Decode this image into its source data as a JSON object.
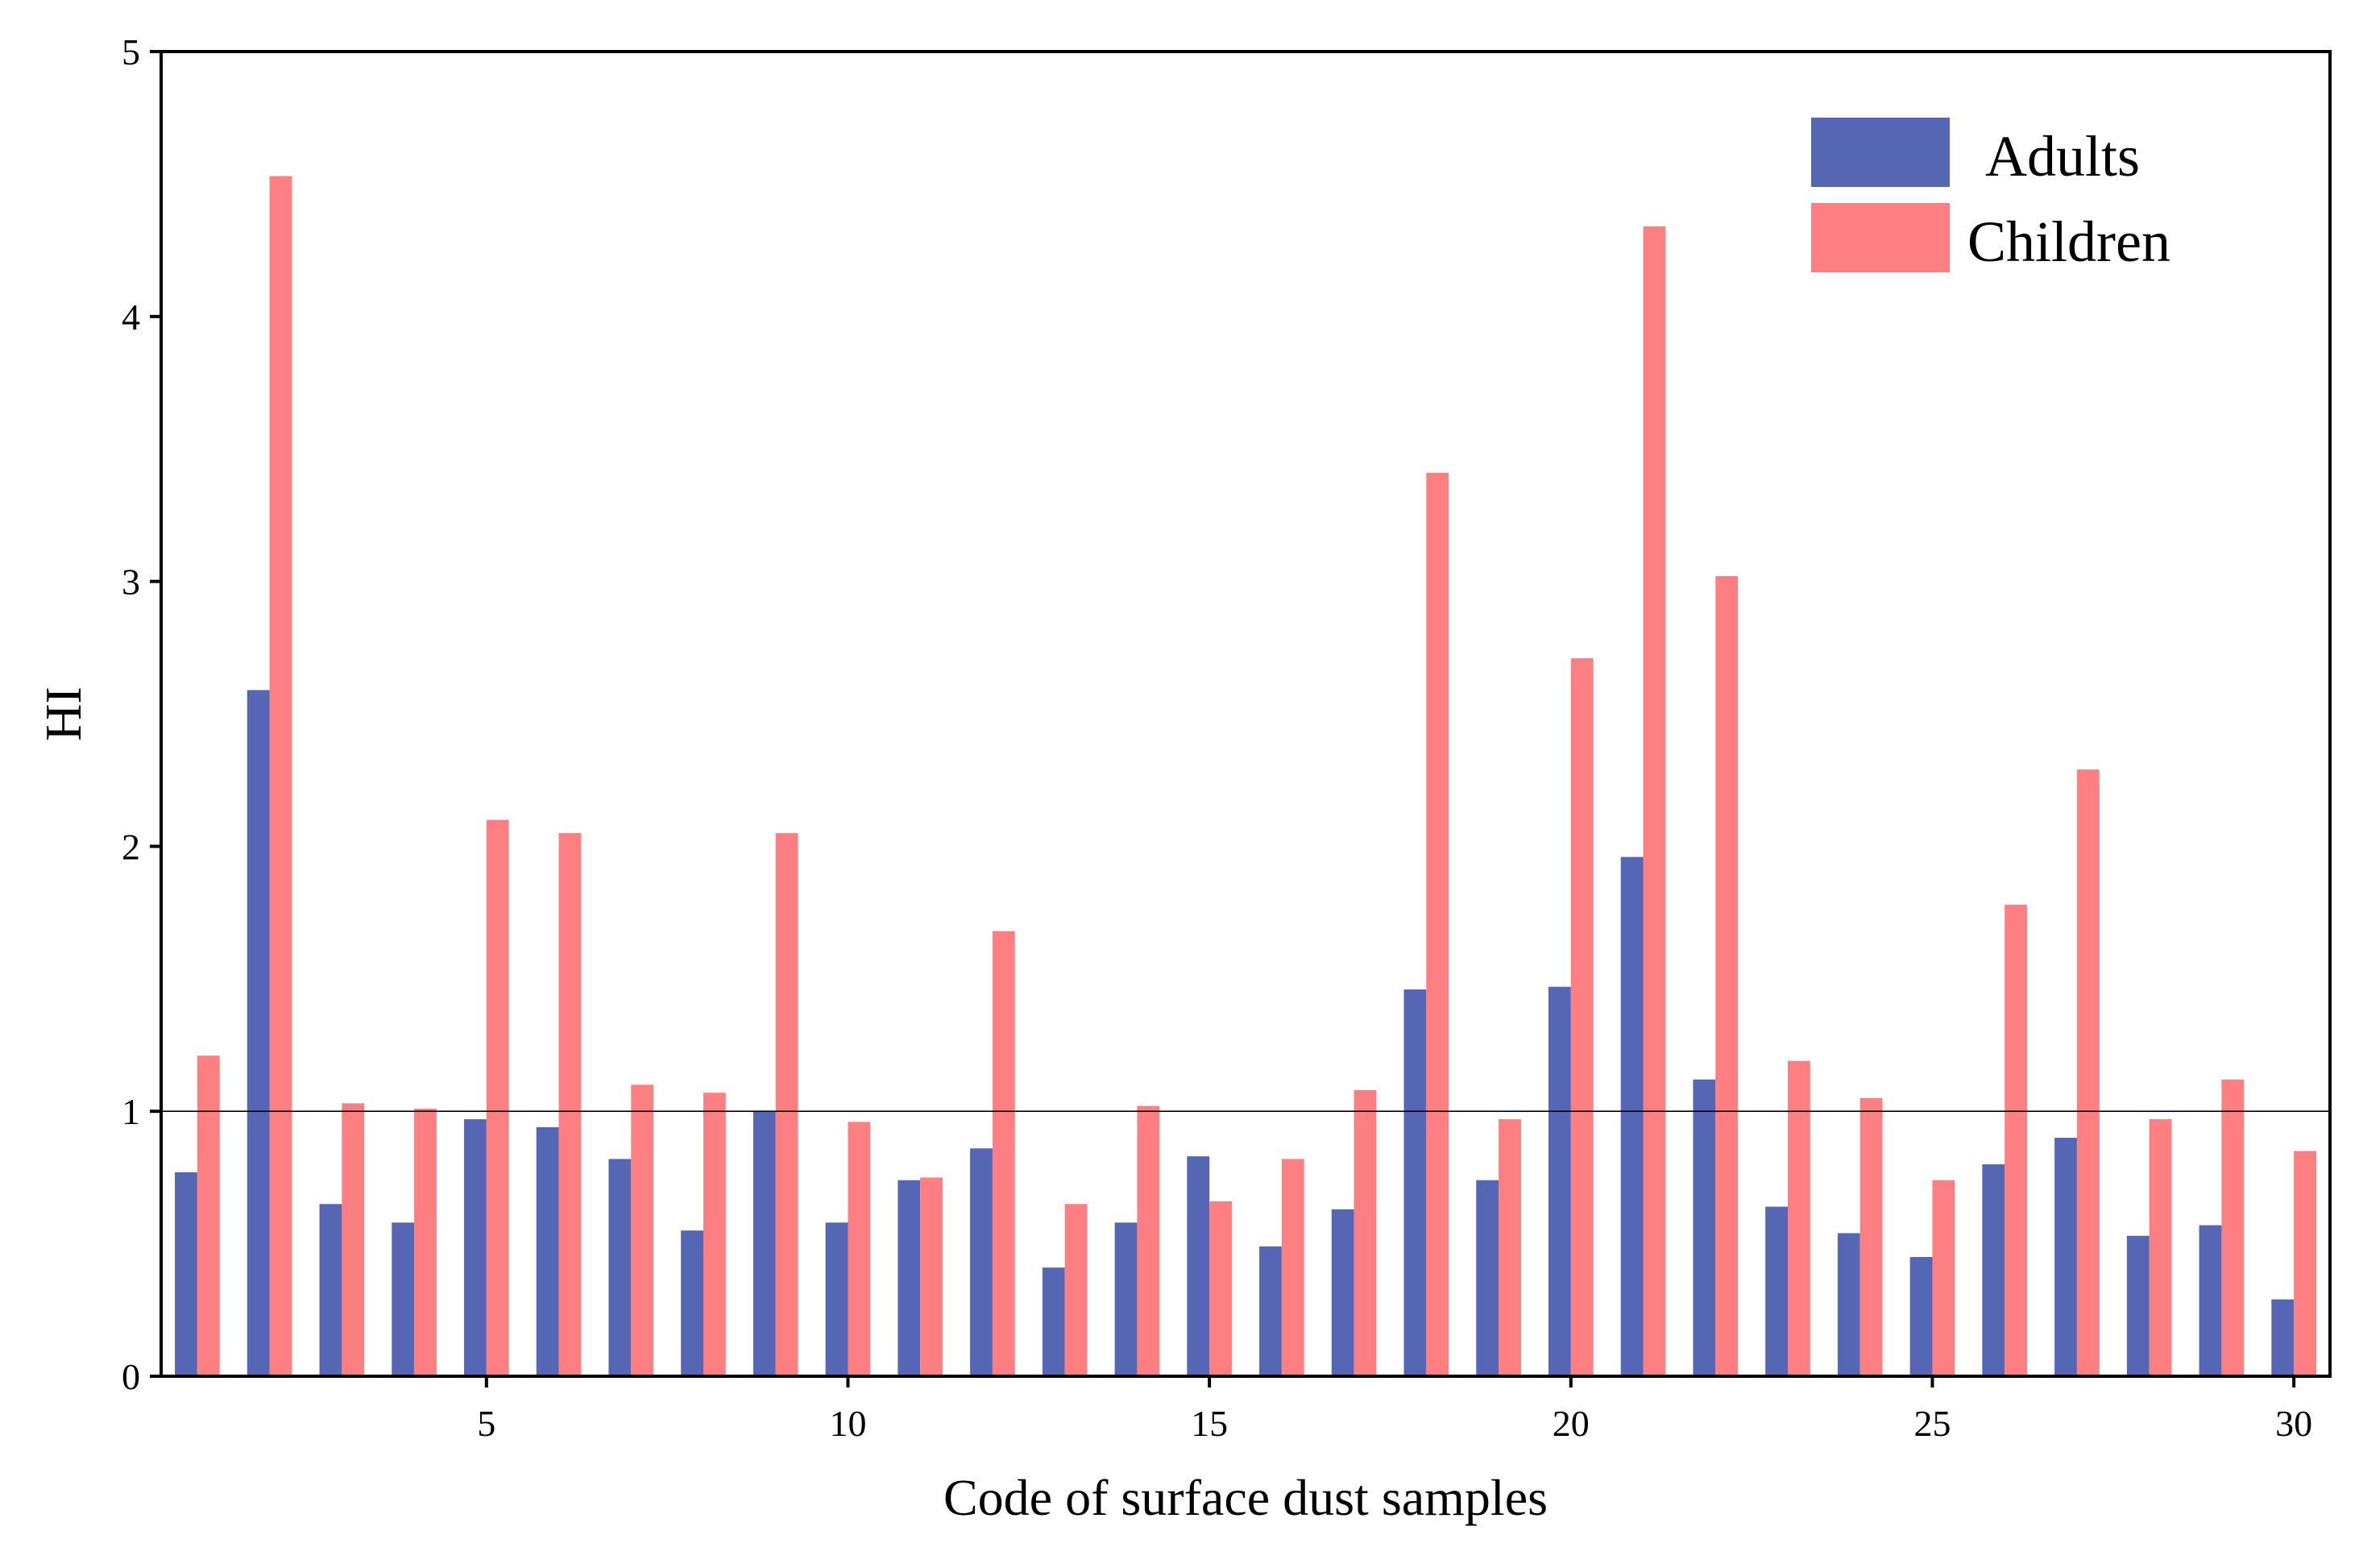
{
  "chart_data": {
    "type": "bar",
    "title": "",
    "xlabel": "Code of surface dust samples",
    "ylabel": "HI",
    "xlim": [
      0.5,
      30.5
    ],
    "ylim": [
      0,
      5
    ],
    "xticks": [
      5,
      10,
      15,
      20,
      25,
      30
    ],
    "yticks": [
      0,
      1,
      2,
      3,
      4,
      5
    ],
    "reference_line": 1,
    "grid": false,
    "legend_position": "top-right",
    "categories": [
      1,
      2,
      3,
      4,
      5,
      6,
      7,
      8,
      9,
      10,
      11,
      12,
      13,
      14,
      15,
      16,
      17,
      18,
      19,
      20,
      21,
      22,
      23,
      24,
      25,
      26,
      27,
      28,
      29,
      30
    ],
    "series": [
      {
        "name": "Adults",
        "color": "#5566b4",
        "values": [
          0.77,
          2.59,
          0.65,
          0.58,
          0.97,
          0.94,
          0.82,
          0.55,
          1.0,
          0.58,
          0.74,
          0.86,
          0.41,
          0.58,
          0.83,
          0.49,
          0.63,
          1.46,
          0.74,
          1.47,
          1.96,
          1.12,
          0.64,
          0.54,
          0.45,
          0.8,
          0.9,
          0.53,
          0.57,
          0.29
        ]
      },
      {
        "name": "Children",
        "color": "#fd7f81",
        "values": [
          1.21,
          4.53,
          1.03,
          1.01,
          2.1,
          2.05,
          1.1,
          1.07,
          2.05,
          0.96,
          0.75,
          1.68,
          0.65,
          1.02,
          0.66,
          0.82,
          1.08,
          3.41,
          0.97,
          2.71,
          4.34,
          3.02,
          1.19,
          1.05,
          0.74,
          1.78,
          2.29,
          0.97,
          1.12,
          0.85
        ]
      }
    ]
  }
}
